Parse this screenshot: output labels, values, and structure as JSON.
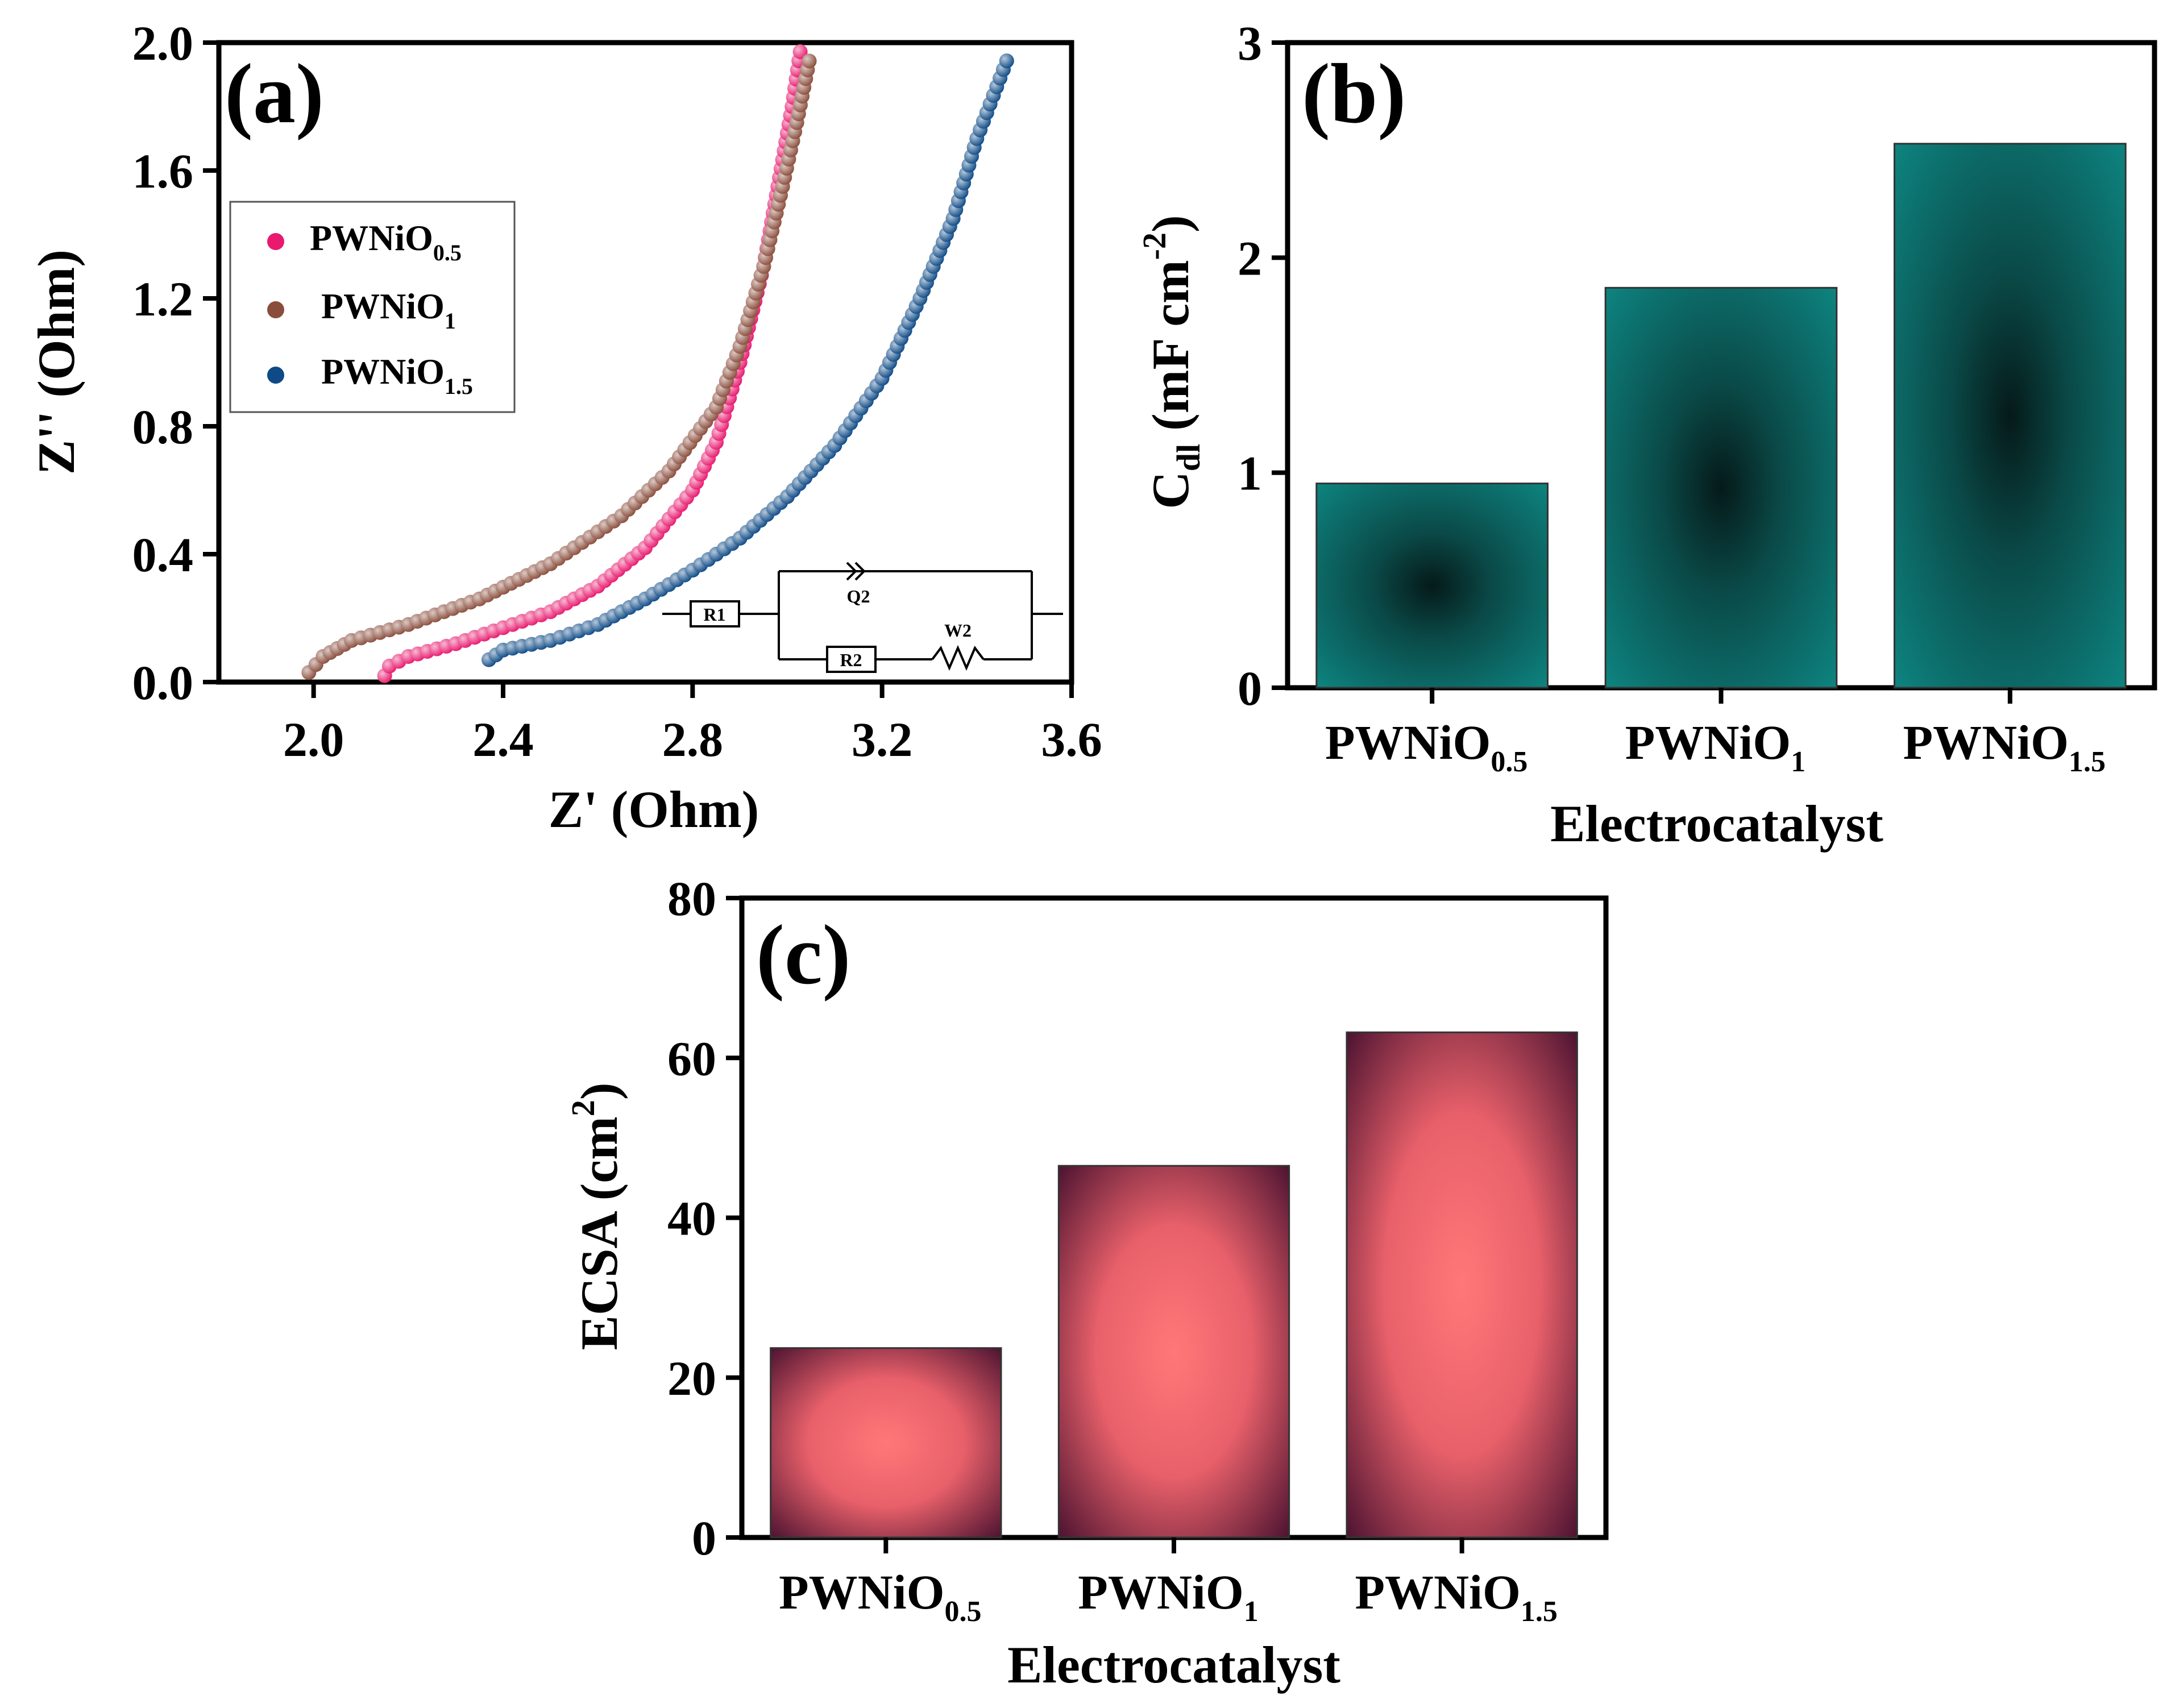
{
  "colors": {
    "pwnio05": "#e8196e",
    "pwnio1": "#8a4d3c",
    "pwnio15": "#0e4a86",
    "teal": "#0e8a86",
    "teal_dark": "#051a19",
    "rose": "#ff7878",
    "rose_dark": "#3a0a2a"
  },
  "chart_data": [
    {
      "panel": "(a)",
      "type": "scatter",
      "xlabel": "Z' (Ohm)",
      "ylabel": "Z'' (Ohm)",
      "xlim": [
        1.8,
        3.6
      ],
      "ylim": [
        0.0,
        2.0
      ],
      "xticks": [
        "2.0",
        "2.4",
        "2.8",
        "3.2",
        "3.6"
      ],
      "yticks": [
        "0.0",
        "0.4",
        "0.8",
        "1.2",
        "1.6",
        "2.0"
      ],
      "legend_position": "top-left",
      "series": [
        {
          "name": "PWNiO",
          "sub": "0.5",
          "color_key": "pwnio05",
          "points": [
            [
              2.15,
              0.02
            ],
            [
              2.16,
              0.05
            ],
            [
              2.2,
              0.08
            ],
            [
              2.3,
              0.12
            ],
            [
              2.4,
              0.17
            ],
            [
              2.5,
              0.22
            ],
            [
              2.6,
              0.3
            ],
            [
              2.7,
              0.42
            ],
            [
              2.8,
              0.6
            ],
            [
              2.85,
              0.75
            ],
            [
              2.9,
              1.0
            ],
            [
              2.95,
              1.3
            ],
            [
              2.98,
              1.55
            ],
            [
              3.01,
              1.8
            ],
            [
              3.03,
              2.0
            ]
          ]
        },
        {
          "name": "PWNiO",
          "sub": "1",
          "color_key": "pwnio1",
          "points": [
            [
              1.99,
              0.03
            ],
            [
              2.02,
              0.08
            ],
            [
              2.08,
              0.13
            ],
            [
              2.2,
              0.18
            ],
            [
              2.35,
              0.26
            ],
            [
              2.5,
              0.37
            ],
            [
              2.65,
              0.52
            ],
            [
              2.75,
              0.66
            ],
            [
              2.85,
              0.86
            ],
            [
              2.9,
              1.05
            ],
            [
              2.95,
              1.3
            ],
            [
              2.99,
              1.55
            ],
            [
              3.02,
              1.75
            ],
            [
              3.05,
              1.97
            ]
          ]
        },
        {
          "name": "PWNiO",
          "sub": "1.5",
          "color_key": "pwnio15",
          "points": [
            [
              2.37,
              0.07
            ],
            [
              2.4,
              0.1
            ],
            [
              2.5,
              0.13
            ],
            [
              2.6,
              0.18
            ],
            [
              2.7,
              0.26
            ],
            [
              2.8,
              0.35
            ],
            [
              2.9,
              0.45
            ],
            [
              3.0,
              0.58
            ],
            [
              3.1,
              0.74
            ],
            [
              3.2,
              0.95
            ],
            [
              3.28,
              1.2
            ],
            [
              3.35,
              1.45
            ],
            [
              3.4,
              1.7
            ],
            [
              3.47,
              1.97
            ]
          ]
        }
      ],
      "inset": {
        "labels": [
          "R1",
          "Q2",
          "R2",
          "W2"
        ]
      }
    },
    {
      "panel": "(b)",
      "type": "bar",
      "categories": [
        {
          "main": "PWNiO",
          "sub": "0.5"
        },
        {
          "main": "PWNiO",
          "sub": "1"
        },
        {
          "main": "PWNiO",
          "sub": "1.5"
        }
      ],
      "values": [
        0.95,
        1.86,
        2.53
      ],
      "ylim": [
        0,
        3
      ],
      "yticks": [
        "0",
        "1",
        "2",
        "3"
      ],
      "xlabel": "Electrocatalyst",
      "ylabel": {
        "main": "C",
        "sub": "dl",
        "rest": " (mF cm",
        "sup": "-2",
        "end": ")"
      },
      "color_key": "teal"
    },
    {
      "panel": "(c)",
      "type": "bar",
      "categories": [
        {
          "main": "PWNiO",
          "sub": "0.5"
        },
        {
          "main": "PWNiO",
          "sub": "1"
        },
        {
          "main": "PWNiO",
          "sub": "1.5"
        }
      ],
      "values": [
        23.7,
        46.5,
        63.2
      ],
      "ylim": [
        0,
        80
      ],
      "yticks": [
        "0",
        "20",
        "40",
        "60",
        "80"
      ],
      "xlabel": "Electrocatalyst",
      "ylabel": {
        "main": "ECSA (cm",
        "sup": "2",
        "end": ")"
      },
      "color_key": "rose"
    }
  ]
}
